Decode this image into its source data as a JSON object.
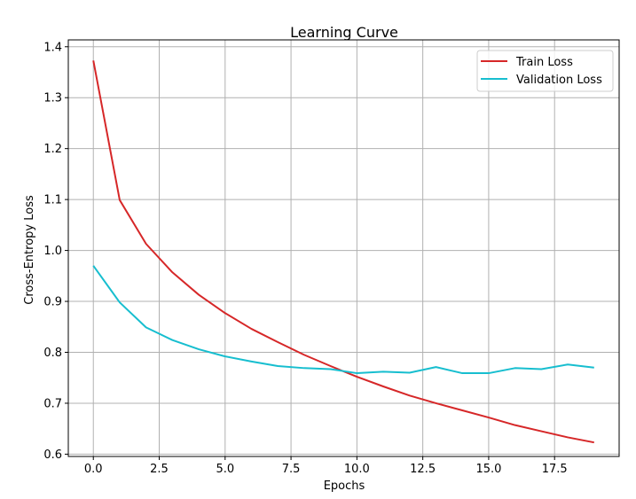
{
  "chart_data": {
    "type": "line",
    "title": "Learning Curve",
    "xlabel": "Epochs",
    "ylabel": "Cross-Entropy Loss",
    "xlim": [
      -0.95,
      19.95
    ],
    "ylim": [
      0.5955,
      1.4135
    ],
    "xticks": [
      0.0,
      2.5,
      5.0,
      7.5,
      10.0,
      12.5,
      15.0,
      17.5
    ],
    "xtick_labels": [
      "0.0",
      "2.5",
      "5.0",
      "7.5",
      "10.0",
      "12.5",
      "15.0",
      "17.5"
    ],
    "yticks": [
      0.6,
      0.7,
      0.8,
      0.9,
      1.0,
      1.1,
      1.2,
      1.3,
      1.4
    ],
    "ytick_labels": [
      "0.6",
      "0.7",
      "0.8",
      "0.9",
      "1.0",
      "1.1",
      "1.2",
      "1.3",
      "1.4"
    ],
    "grid": true,
    "legend_position": "top-right",
    "x": [
      0,
      1,
      2,
      3,
      4,
      5,
      6,
      7,
      8,
      9,
      10,
      11,
      12,
      13,
      14,
      15,
      16,
      17,
      18,
      19
    ],
    "series": [
      {
        "name": "Train Loss",
        "color": "#d62728",
        "values": [
          1.373,
          1.099,
          1.013,
          0.957,
          0.913,
          0.877,
          0.846,
          0.82,
          0.795,
          0.773,
          0.752,
          0.733,
          0.715,
          0.7,
          0.686,
          0.672,
          0.657,
          0.645,
          0.633,
          0.623
        ]
      },
      {
        "name": "Validation Loss",
        "color": "#17becf",
        "values": [
          0.97,
          0.898,
          0.849,
          0.824,
          0.806,
          0.792,
          0.782,
          0.773,
          0.769,
          0.767,
          0.759,
          0.762,
          0.76,
          0.771,
          0.759,
          0.759,
          0.769,
          0.767,
          0.776,
          0.77
        ]
      }
    ]
  }
}
